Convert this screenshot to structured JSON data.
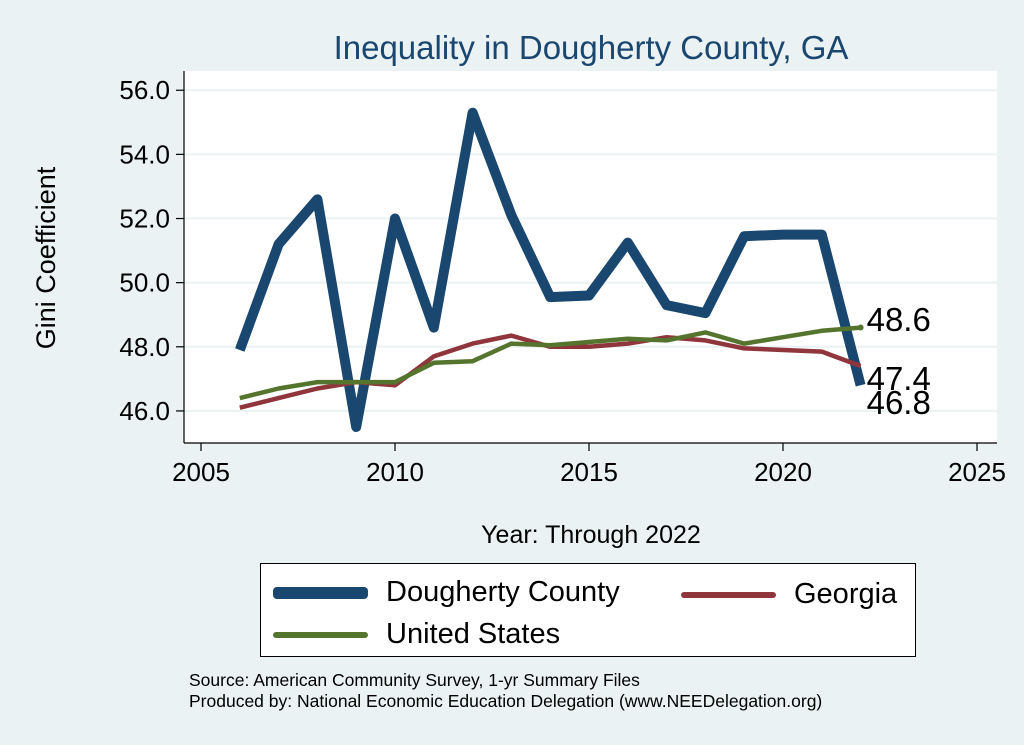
{
  "chart_data": {
    "type": "line",
    "title": "Inequality in Dougherty County, GA",
    "xlabel": "Year: Through 2022",
    "ylabel": "Gini Coefficient",
    "xlim": [
      2005,
      2025
    ],
    "ylim": [
      45.0,
      56.6
    ],
    "xticks": [
      2005,
      2010,
      2015,
      2020,
      2025
    ],
    "yticks": [
      46.0,
      48.0,
      50.0,
      52.0,
      54.0,
      56.0
    ],
    "x": [
      2006,
      2007,
      2008,
      2009,
      2010,
      2011,
      2012,
      2013,
      2014,
      2015,
      2016,
      2017,
      2018,
      2019,
      2020,
      2021,
      2022
    ],
    "series": [
      {
        "name": "Dougherty County",
        "color": "#1a476f",
        "values": [
          47.9,
          51.2,
          52.6,
          45.5,
          52.0,
          48.6,
          55.3,
          52.1,
          49.55,
          49.6,
          51.25,
          49.3,
          49.05,
          51.45,
          51.5,
          51.5,
          46.8
        ],
        "end_label": "46.8"
      },
      {
        "name": "Georgia",
        "color": "#90353b",
        "values": [
          46.1,
          46.4,
          46.7,
          46.9,
          46.8,
          47.7,
          48.1,
          48.35,
          48.0,
          48.0,
          48.1,
          48.3,
          48.2,
          47.95,
          47.9,
          47.85,
          47.4
        ],
        "end_label": "47.4"
      },
      {
        "name": "United States",
        "color": "#55752f",
        "values": [
          46.4,
          46.7,
          46.9,
          46.9,
          46.9,
          47.5,
          47.55,
          48.1,
          48.05,
          48.15,
          48.25,
          48.2,
          48.45,
          48.1,
          48.3,
          48.5,
          48.6
        ],
        "end_label": "48.6"
      }
    ],
    "legend": [
      "Dougherty County",
      "Georgia",
      "United States"
    ],
    "grid": true,
    "legend_position": "bottom"
  },
  "footer": {
    "source": "Source: American Community Survey, 1-yr Summary Files",
    "producer": "Produced by: National Economic Education Delegation (www.NEEDelegation.org)"
  }
}
